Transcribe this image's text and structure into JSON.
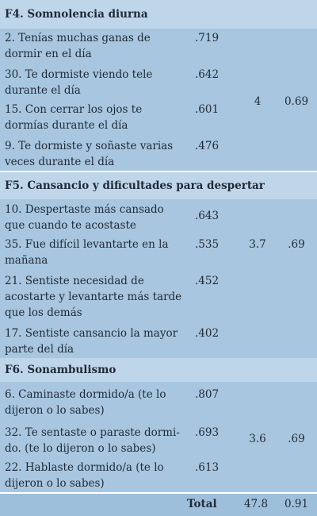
{
  "factors": [
    {
      "header": "F4. Somnolencia diurna",
      "items": [
        {
          "text": "2. Tenías muchas ganas de dormir en el día",
          "loading": ".719"
        },
        {
          "text": "30. Te dormiste viendo tele durante el día",
          "loading": ".642"
        },
        {
          "text": "15. Con cerrar los ojos te dormías durante el día",
          "loading": ".601"
        },
        {
          "text": "9. Te dormiste y soñaste varias veces durante el día",
          "loading": ".476"
        }
      ],
      "n_items": "4",
      "alpha": "0.69"
    },
    {
      "header": "F5. Cansancio y dificultades para despertar",
      "items": [
        {
          "text": "10. Despertaste más cansado que cuando te acostaste",
          "loading": ".643"
        },
        {
          "text": "35. Fue difícil levantarte en la mañana",
          "loading": ".535"
        },
        {
          "text": "21. Sentiste necesidad de acostarte y levantarte más tarde que los demás",
          "loading": ".452"
        },
        {
          "text": "17. Sentiste cansancio la mayor parte del día",
          "loading": ".402"
        }
      ],
      "n_items": "3.7",
      "alpha": ".69"
    },
    {
      "header": "F6. Sonambulismo",
      "items": [
        {
          "text": "6. Caminaste dormido/a (te lo dijeron o lo sabes)",
          "loading": ".807"
        },
        {
          "text": "32. Te sentaste o paraste dormi- do. (te lo dijeron o lo sabes)",
          "loading": ".693"
        },
        {
          "text": "22. Hablaste dormido/a (te lo dijeron o lo sabes)",
          "loading": ".613"
        }
      ],
      "n_items": "3.6",
      "alpha": ".69"
    }
  ],
  "total": {
    "label": "Total",
    "n_items": "47.8",
    "alpha": "0.91"
  }
}
